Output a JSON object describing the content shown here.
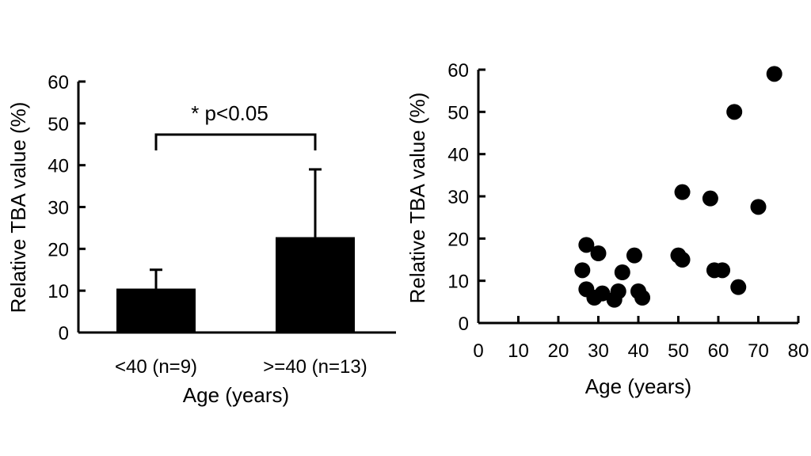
{
  "chart_data": [
    {
      "type": "bar",
      "categories": [
        "<40 (n=9)",
        ">=40 (n=13)"
      ],
      "values": [
        10.5,
        22.8
      ],
      "error_upper": [
        15,
        39
      ],
      "xlabel": "Age (years)",
      "ylabel": "Relative TBA value (%)",
      "ylim": [
        0,
        60
      ],
      "yticks": [
        "0",
        "10",
        "20",
        "30",
        "40",
        "50",
        "60"
      ],
      "annotation": "* p<0.05",
      "bar_color": "#000000",
      "grid": false
    },
    {
      "type": "scatter",
      "xlabel": "Age (years)",
      "ylabel": "Relative TBA value (%)",
      "xlim": [
        0,
        80
      ],
      "ylim": [
        0,
        60
      ],
      "xticks": [
        "0",
        "10",
        "20",
        "30",
        "40",
        "50",
        "60",
        "70",
        "80"
      ],
      "yticks": [
        "0",
        "10",
        "20",
        "30",
        "40",
        "50",
        "60"
      ],
      "x": [
        26,
        27,
        27,
        29,
        30,
        31,
        34,
        35,
        36,
        39,
        40,
        41,
        50,
        51,
        51,
        58,
        59,
        61,
        64,
        65,
        70,
        74
      ],
      "y": [
        12.5,
        18.5,
        8,
        6,
        16.5,
        7,
        5.5,
        7.5,
        12,
        16,
        7.5,
        6,
        16,
        15,
        31,
        29.5,
        12.5,
        12.5,
        50,
        8.5,
        27.5,
        59
      ],
      "marker_color": "#000000",
      "grid": false
    }
  ]
}
